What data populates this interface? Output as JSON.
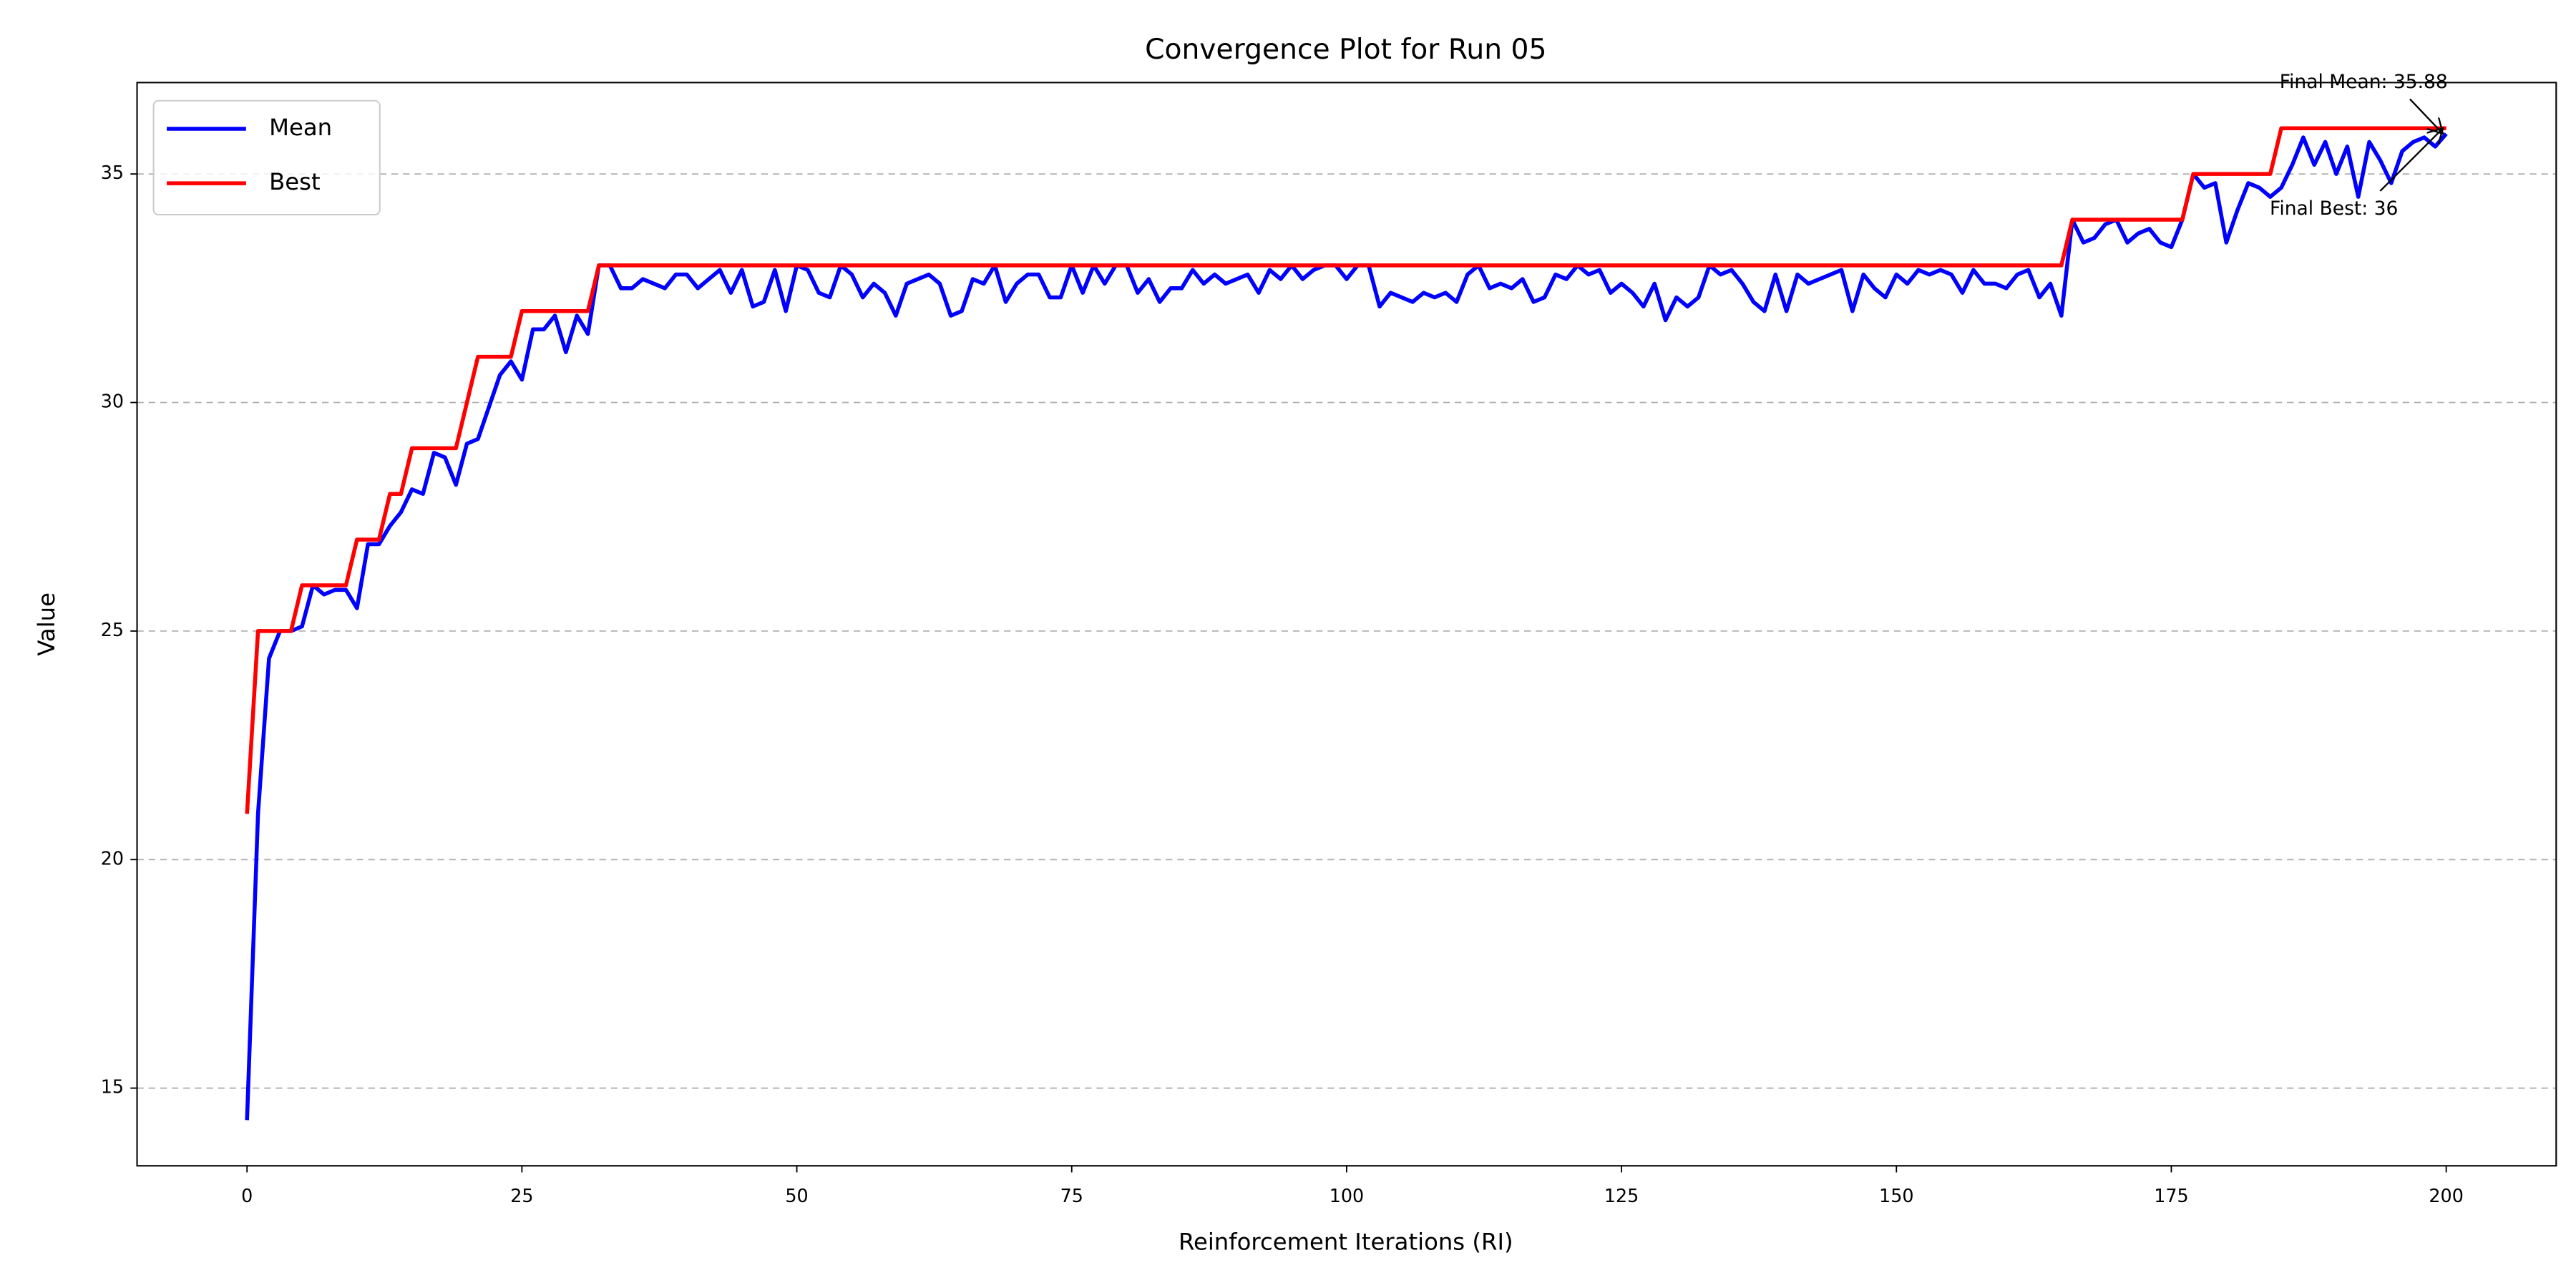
{
  "chart_data": {
    "type": "line",
    "title": "Convergence Plot for Run 05",
    "xlabel": "Reinforcement Iterations (RI)",
    "ylabel": "Value",
    "x": [
      0,
      1,
      2,
      3,
      4,
      5,
      6,
      7,
      8,
      9,
      10,
      11,
      12,
      13,
      14,
      15,
      16,
      17,
      18,
      19,
      20,
      21,
      22,
      23,
      24,
      25,
      26,
      27,
      28,
      29,
      30,
      31,
      32,
      33,
      34,
      35,
      36,
      37,
      38,
      39,
      40,
      41,
      42,
      43,
      44,
      45,
      46,
      47,
      48,
      49,
      50,
      51,
      52,
      53,
      54,
      55,
      56,
      57,
      58,
      59,
      60,
      61,
      62,
      63,
      64,
      65,
      66,
      67,
      68,
      69,
      70,
      71,
      72,
      73,
      74,
      75,
      76,
      77,
      78,
      79,
      80,
      81,
      82,
      83,
      84,
      85,
      86,
      87,
      88,
      89,
      90,
      91,
      92,
      93,
      94,
      95,
      96,
      97,
      98,
      99,
      100,
      101,
      102,
      103,
      104,
      105,
      106,
      107,
      108,
      109,
      110,
      111,
      112,
      113,
      114,
      115,
      116,
      117,
      118,
      119,
      120,
      121,
      122,
      123,
      124,
      125,
      126,
      127,
      128,
      129,
      130,
      131,
      132,
      133,
      134,
      135,
      136,
      137,
      138,
      139,
      140,
      141,
      142,
      143,
      144,
      145,
      146,
      147,
      148,
      149,
      150,
      151,
      152,
      153,
      154,
      155,
      156,
      157,
      158,
      159,
      160,
      161,
      162,
      163,
      164,
      165,
      166,
      167,
      168,
      169,
      170,
      171,
      172,
      173,
      174,
      175,
      176,
      177,
      178,
      179,
      180,
      181,
      182,
      183,
      184,
      185,
      186,
      187,
      188,
      189,
      190,
      191,
      192,
      193,
      194,
      195,
      196,
      197,
      198,
      199,
      200
    ],
    "series": [
      {
        "name": "Mean",
        "color": "#0000ff",
        "values": [
          14.3,
          21.0,
          24.4,
          25.0,
          25.0,
          25.1,
          26.0,
          25.8,
          25.9,
          25.9,
          25.5,
          26.9,
          26.9,
          27.3,
          27.6,
          28.1,
          28.0,
          28.9,
          28.8,
          28.2,
          29.1,
          29.2,
          29.9,
          30.6,
          30.9,
          30.5,
          31.6,
          31.6,
          31.9,
          31.1,
          31.9,
          31.5,
          33.0,
          33.0,
          32.5,
          32.5,
          32.7,
          32.6,
          32.5,
          32.8,
          32.8,
          32.5,
          32.7,
          32.9,
          32.4,
          32.9,
          32.1,
          32.2,
          32.9,
          32.0,
          33.0,
          32.9,
          32.4,
          32.3,
          33.0,
          32.8,
          32.3,
          32.6,
          32.4,
          31.9,
          32.6,
          32.7,
          32.8,
          32.6,
          31.9,
          32.0,
          32.7,
          32.6,
          33.0,
          32.2,
          32.6,
          32.8,
          32.8,
          32.3,
          32.3,
          33.0,
          32.4,
          33.0,
          32.6,
          33.0,
          33.0,
          32.4,
          32.7,
          32.2,
          32.5,
          32.5,
          32.9,
          32.6,
          32.8,
          32.6,
          32.7,
          32.8,
          32.4,
          32.9,
          32.7,
          33.0,
          32.7,
          32.9,
          33.0,
          33.0,
          32.7,
          33.0,
          33.0,
          32.1,
          32.4,
          32.3,
          32.2,
          32.4,
          32.3,
          32.4,
          32.2,
          32.8,
          33.0,
          32.5,
          32.6,
          32.5,
          32.7,
          32.2,
          32.3,
          32.8,
          32.7,
          33.0,
          32.8,
          32.9,
          32.4,
          32.6,
          32.4,
          32.1,
          32.6,
          31.8,
          32.3,
          32.1,
          32.3,
          33.0,
          32.8,
          32.9,
          32.6,
          32.2,
          32.0,
          32.8,
          32.0,
          32.8,
          32.6,
          32.7,
          32.8,
          32.9,
          32.0,
          32.8,
          32.5,
          32.3,
          32.8,
          32.6,
          32.9,
          32.8,
          32.9,
          32.8,
          32.4,
          32.9,
          32.6,
          32.6,
          32.5,
          32.8,
          32.9,
          32.3,
          32.6,
          31.9,
          34.0,
          33.5,
          33.6,
          33.9,
          34.0,
          33.5,
          33.7,
          33.8,
          33.5,
          33.4,
          34.0,
          35.0,
          34.7,
          34.8,
          33.5,
          34.2,
          34.8,
          34.7,
          34.5,
          34.7,
          35.2,
          35.8,
          35.2,
          35.7,
          35.0,
          35.6,
          34.5,
          35.7,
          35.3,
          34.8,
          35.5,
          35.7,
          35.8,
          35.6,
          35.88
        ]
      },
      {
        "name": "Best",
        "color": "#ff0000",
        "values": [
          21,
          25,
          25,
          25,
          25,
          26,
          26,
          26,
          26,
          26,
          27,
          27,
          27,
          28,
          28,
          29,
          29,
          29,
          29,
          29,
          30,
          31,
          31,
          31,
          31,
          32,
          32,
          32,
          32,
          32,
          32,
          32,
          33,
          33,
          33,
          33,
          33,
          33,
          33,
          33,
          33,
          33,
          33,
          33,
          33,
          33,
          33,
          33,
          33,
          33,
          33,
          33,
          33,
          33,
          33,
          33,
          33,
          33,
          33,
          33,
          33,
          33,
          33,
          33,
          33,
          33,
          33,
          33,
          33,
          33,
          33,
          33,
          33,
          33,
          33,
          33,
          33,
          33,
          33,
          33,
          33,
          33,
          33,
          33,
          33,
          33,
          33,
          33,
          33,
          33,
          33,
          33,
          33,
          33,
          33,
          33,
          33,
          33,
          33,
          33,
          33,
          33,
          33,
          33,
          33,
          33,
          33,
          33,
          33,
          33,
          33,
          33,
          33,
          33,
          33,
          33,
          33,
          33,
          33,
          33,
          33,
          33,
          33,
          33,
          33,
          33,
          33,
          33,
          33,
          33,
          33,
          33,
          33,
          33,
          33,
          33,
          33,
          33,
          33,
          33,
          33,
          33,
          33,
          33,
          33,
          33,
          33,
          33,
          33,
          33,
          33,
          33,
          33,
          33,
          33,
          33,
          33,
          33,
          33,
          33,
          33,
          33,
          33,
          33,
          33,
          33,
          34,
          34,
          34,
          34,
          34,
          34,
          34,
          34,
          34,
          34,
          34,
          35,
          35,
          35,
          35,
          35,
          35,
          35,
          35,
          36,
          36,
          36,
          36,
          36,
          36,
          36,
          36,
          36,
          36,
          36,
          36,
          36,
          36,
          36,
          36
        ]
      }
    ],
    "annotations": [
      {
        "text": "Final Mean: 35.88",
        "x": 200,
        "y": 35.88
      },
      {
        "text": "Final Best: 36",
        "x": 200,
        "y": 36
      }
    ],
    "xlim": [
      -10,
      210
    ],
    "ylim": [
      13.3,
      37
    ],
    "xticks": [
      0,
      25,
      50,
      75,
      100,
      125,
      150,
      175,
      200
    ],
    "yticks": [
      15,
      20,
      25,
      30,
      35
    ],
    "grid": "y",
    "legend": "upper left"
  }
}
